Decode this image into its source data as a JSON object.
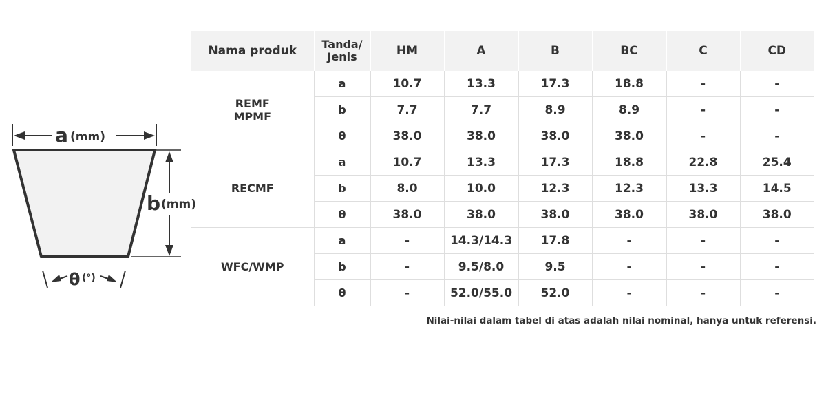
{
  "diagram": {
    "label_a": "a",
    "unit_a": "(mm)",
    "label_b": "b",
    "unit_b": "(mm)",
    "label_theta": "θ",
    "unit_theta": "(°)"
  },
  "table": {
    "headers": [
      "Nama produk",
      "Tanda/ Jenis",
      "HM",
      "A",
      "B",
      "BC",
      "C",
      "CD"
    ],
    "groups": [
      {
        "product": "REMF\nMPMF",
        "rows": [
          {
            "mark": "a",
            "values": [
              "10.7",
              "13.3",
              "17.3",
              "18.8",
              "-",
              "-"
            ]
          },
          {
            "mark": "b",
            "values": [
              "7.7",
              "7.7",
              "8.9",
              "8.9",
              "-",
              "-"
            ]
          },
          {
            "mark": "θ",
            "values": [
              "38.0",
              "38.0",
              "38.0",
              "38.0",
              "-",
              "-"
            ]
          }
        ]
      },
      {
        "product": "RECMF",
        "rows": [
          {
            "mark": "a",
            "values": [
              "10.7",
              "13.3",
              "17.3",
              "18.8",
              "22.8",
              "25.4"
            ]
          },
          {
            "mark": "b",
            "values": [
              "8.0",
              "10.0",
              "12.3",
              "12.3",
              "13.3",
              "14.5"
            ]
          },
          {
            "mark": "θ",
            "values": [
              "38.0",
              "38.0",
              "38.0",
              "38.0",
              "38.0",
              "38.0"
            ]
          }
        ]
      },
      {
        "product": "WFC/WMP",
        "rows": [
          {
            "mark": "a",
            "values": [
              "-",
              "14.3/14.3",
              "17.8",
              "-",
              "-",
              "-"
            ]
          },
          {
            "mark": "b",
            "values": [
              "-",
              "9.5/8.0",
              "9.5",
              "-",
              "-",
              "-"
            ]
          },
          {
            "mark": "θ",
            "values": [
              "-",
              "52.0/55.0",
              "52.0",
              "-",
              "-",
              "-"
            ]
          }
        ]
      }
    ]
  },
  "note": "Nilai-nilai dalam tabel di atas adalah nilai nominal, hanya untuk referensi."
}
